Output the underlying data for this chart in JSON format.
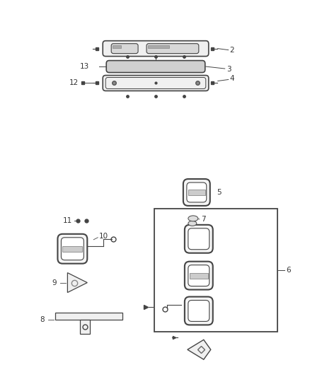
{
  "bg_color": "#ffffff",
  "lc": "#444444",
  "tc": "#333333",
  "fig_w": 4.38,
  "fig_h": 5.33,
  "dpi": 100
}
